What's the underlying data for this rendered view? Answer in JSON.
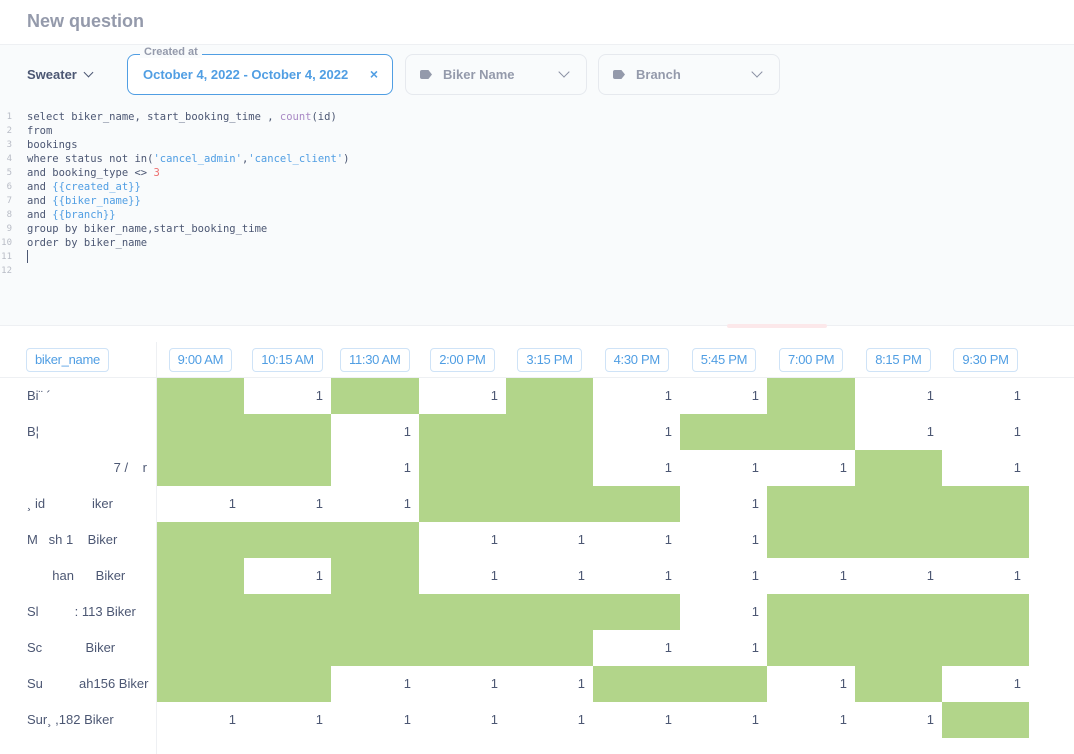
{
  "page_title": "New question",
  "database": "Sweater",
  "filters": {
    "created_at": {
      "legend": "Created at",
      "value": "October 4, 2022 - October 4, 2022",
      "clear": "×"
    },
    "biker_name": {
      "label": "Biker Name"
    },
    "branch": {
      "label": "Branch"
    }
  },
  "sql": {
    "line_numbers": [
      "1",
      "2",
      "3",
      "4",
      "5",
      "6",
      "7",
      "8",
      "9",
      "10",
      "11",
      "12"
    ],
    "lines": [
      [
        {
          "t": "select biker_name, start_booking_time , ",
          "c": "kw"
        },
        {
          "t": "count",
          "c": "fn"
        },
        {
          "t": "(id)",
          "c": "kw"
        }
      ],
      [
        {
          "t": "from",
          "c": "kw"
        }
      ],
      [
        {
          "t": "bookings",
          "c": "kw"
        }
      ],
      [
        {
          "t": "where status not in(",
          "c": "kw"
        },
        {
          "t": "'cancel_admin'",
          "c": "str"
        },
        {
          "t": ",",
          "c": "kw"
        },
        {
          "t": "'cancel_client'",
          "c": "str"
        },
        {
          "t": ")",
          "c": "kw"
        }
      ],
      [
        {
          "t": "and booking_type <> ",
          "c": "kw"
        },
        {
          "t": "3",
          "c": "num"
        }
      ],
      [
        {
          "t": "and ",
          "c": "kw"
        },
        {
          "t": "{{created_at}}",
          "c": "tpl"
        }
      ],
      [
        {
          "t": "and ",
          "c": "kw"
        },
        {
          "t": "{{biker_name}}",
          "c": "tpl"
        }
      ],
      [
        {
          "t": "and ",
          "c": "kw"
        },
        {
          "t": "{{branch}}",
          "c": "tpl"
        }
      ],
      [
        {
          "t": "group by biker_name,start_booking_time",
          "c": "kw"
        }
      ],
      [
        {
          "t": "order by biker_name",
          "c": "kw"
        }
      ],
      [],
      []
    ]
  },
  "table": {
    "first_column": "biker_name",
    "columns": [
      "9:00 AM",
      "10:15 AM",
      "11:30 AM",
      "2:00 PM",
      "3:15 PM",
      "4:30 PM",
      "5:45 PM",
      "7:00 PM",
      "8:15 PM",
      "9:30 PM"
    ],
    "rows": [
      {
        "name": "Bi¨ ´",
        "values": [
          "",
          "1",
          "",
          "1",
          "",
          "1",
          "1",
          "",
          "1",
          "1"
        ]
      },
      {
        "name": "B¦",
        "values": [
          "",
          "",
          "1",
          "",
          "",
          "1",
          "",
          "",
          "1",
          "1"
        ]
      },
      {
        "name": "                        7 /    r",
        "values": [
          "",
          "",
          "1",
          "",
          "",
          "1",
          "1",
          "1",
          "",
          "1"
        ]
      },
      {
        "name": "¸ id             iker",
        "values": [
          "1",
          "1",
          "1",
          "",
          "",
          "",
          "1",
          "",
          "",
          ""
        ]
      },
      {
        "name": "M   sh 1    Biker",
        "values": [
          "",
          "",
          "",
          "1",
          "1",
          "1",
          "1",
          "",
          "",
          ""
        ]
      },
      {
        "name": "       han      Biker",
        "values": [
          "",
          "1",
          "",
          "1",
          "1",
          "1",
          "1",
          "1",
          "1",
          "1"
        ]
      },
      {
        "name": "Sl          : 113 Biker",
        "values": [
          "",
          "",
          "",
          "",
          "",
          "",
          "1",
          "",
          "",
          ""
        ]
      },
      {
        "name": "Sc            Biker",
        "values": [
          "",
          "",
          "",
          "",
          "",
          "1",
          "1",
          "",
          "",
          ""
        ]
      },
      {
        "name": "Su          ah156 Biker",
        "values": [
          "",
          "",
          "1",
          "1",
          "1",
          "",
          "",
          "1",
          "",
          "1"
        ]
      },
      {
        "name": "Sur¸ ,182 Biker",
        "values": [
          "1",
          "1",
          "1",
          "1",
          "1",
          "1",
          "1",
          "1",
          "1",
          ""
        ]
      }
    ]
  },
  "colors": {
    "accent": "#509ee3",
    "empty_cell": "#b2d58a",
    "text": "#4c5773",
    "muted": "#949aab"
  }
}
